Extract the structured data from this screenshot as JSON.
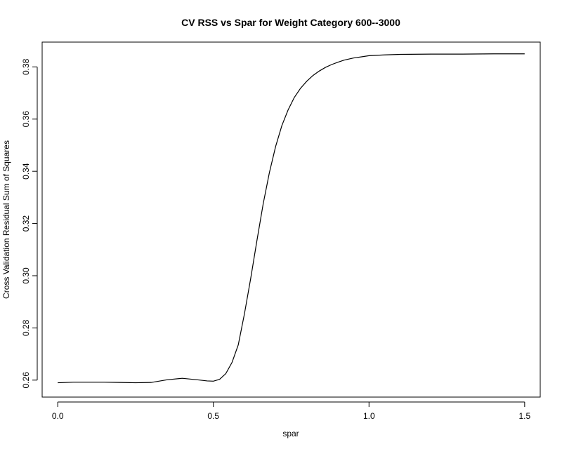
{
  "chart_data": {
    "type": "line",
    "title": "CV RSS vs Spar for Weight Category 600--3000",
    "xlabel": "spar",
    "ylabel": "Cross Validation Residual Sum of Squares",
    "xlim": [
      -0.05,
      1.55
    ],
    "ylim": [
      0.2535,
      0.3895
    ],
    "grid": false,
    "x_ticks": [
      0.0,
      0.5,
      1.0,
      1.5
    ],
    "x_tick_labels": [
      "0.0",
      "0.5",
      "1.0",
      "1.5"
    ],
    "y_ticks": [
      0.26,
      0.28,
      0.3,
      0.32,
      0.34,
      0.36,
      0.38
    ],
    "y_tick_labels": [
      "0.26",
      "0.28",
      "0.30",
      "0.32",
      "0.34",
      "0.36",
      "0.38"
    ],
    "series": [
      {
        "color": "#000000",
        "x": [
          0.0,
          0.05,
          0.1,
          0.15,
          0.2,
          0.25,
          0.3,
          0.35,
          0.4,
          0.45,
          0.48,
          0.5,
          0.52,
          0.54,
          0.56,
          0.58,
          0.6,
          0.62,
          0.64,
          0.66,
          0.68,
          0.7,
          0.72,
          0.74,
          0.76,
          0.78,
          0.8,
          0.82,
          0.84,
          0.86,
          0.88,
          0.9,
          0.92,
          0.95,
          1.0,
          1.05,
          1.1,
          1.2,
          1.3,
          1.4,
          1.5
        ],
        "y": [
          0.259,
          0.2592,
          0.2592,
          0.2592,
          0.2591,
          0.259,
          0.2591,
          0.2601,
          0.2607,
          0.2601,
          0.2597,
          0.2596,
          0.2603,
          0.2625,
          0.2668,
          0.2735,
          0.2855,
          0.299,
          0.3135,
          0.3275,
          0.3395,
          0.3495,
          0.3575,
          0.3635,
          0.3683,
          0.3718,
          0.3745,
          0.3767,
          0.3784,
          0.3798,
          0.3809,
          0.3818,
          0.3826,
          0.3834,
          0.3843,
          0.3846,
          0.3848,
          0.3849,
          0.3849,
          0.385,
          0.385
        ]
      }
    ]
  }
}
